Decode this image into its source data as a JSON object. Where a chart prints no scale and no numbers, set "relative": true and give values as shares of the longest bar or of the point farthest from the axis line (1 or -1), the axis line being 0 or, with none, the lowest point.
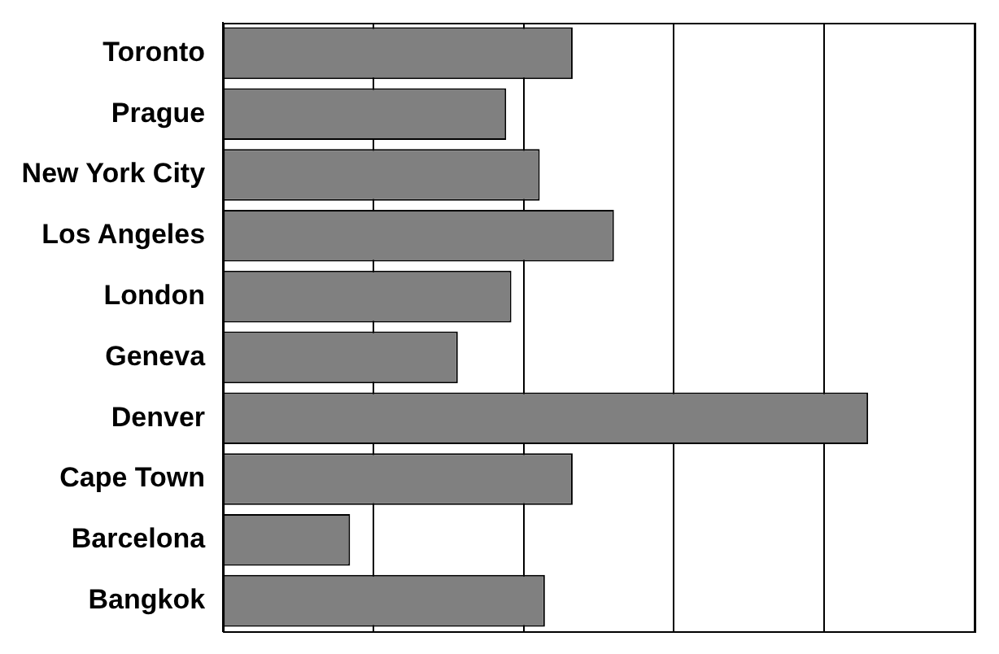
{
  "chart_data": {
    "type": "bar",
    "orientation": "horizontal",
    "relative": true,
    "grid": "x",
    "legend": false,
    "categories": [
      "Toronto",
      "Prague",
      "New York City",
      "Los Angeles",
      "London",
      "Geneva",
      "Denver",
      "Cape Town",
      "Barcelona",
      "Bangkok"
    ],
    "series": [
      {
        "color": "#808080",
        "values": [
          0.542,
          0.439,
          0.491,
          0.606,
          0.447,
          0.364,
          1,
          0.542,
          0.197,
          0.499
        ]
      }
    ]
  }
}
